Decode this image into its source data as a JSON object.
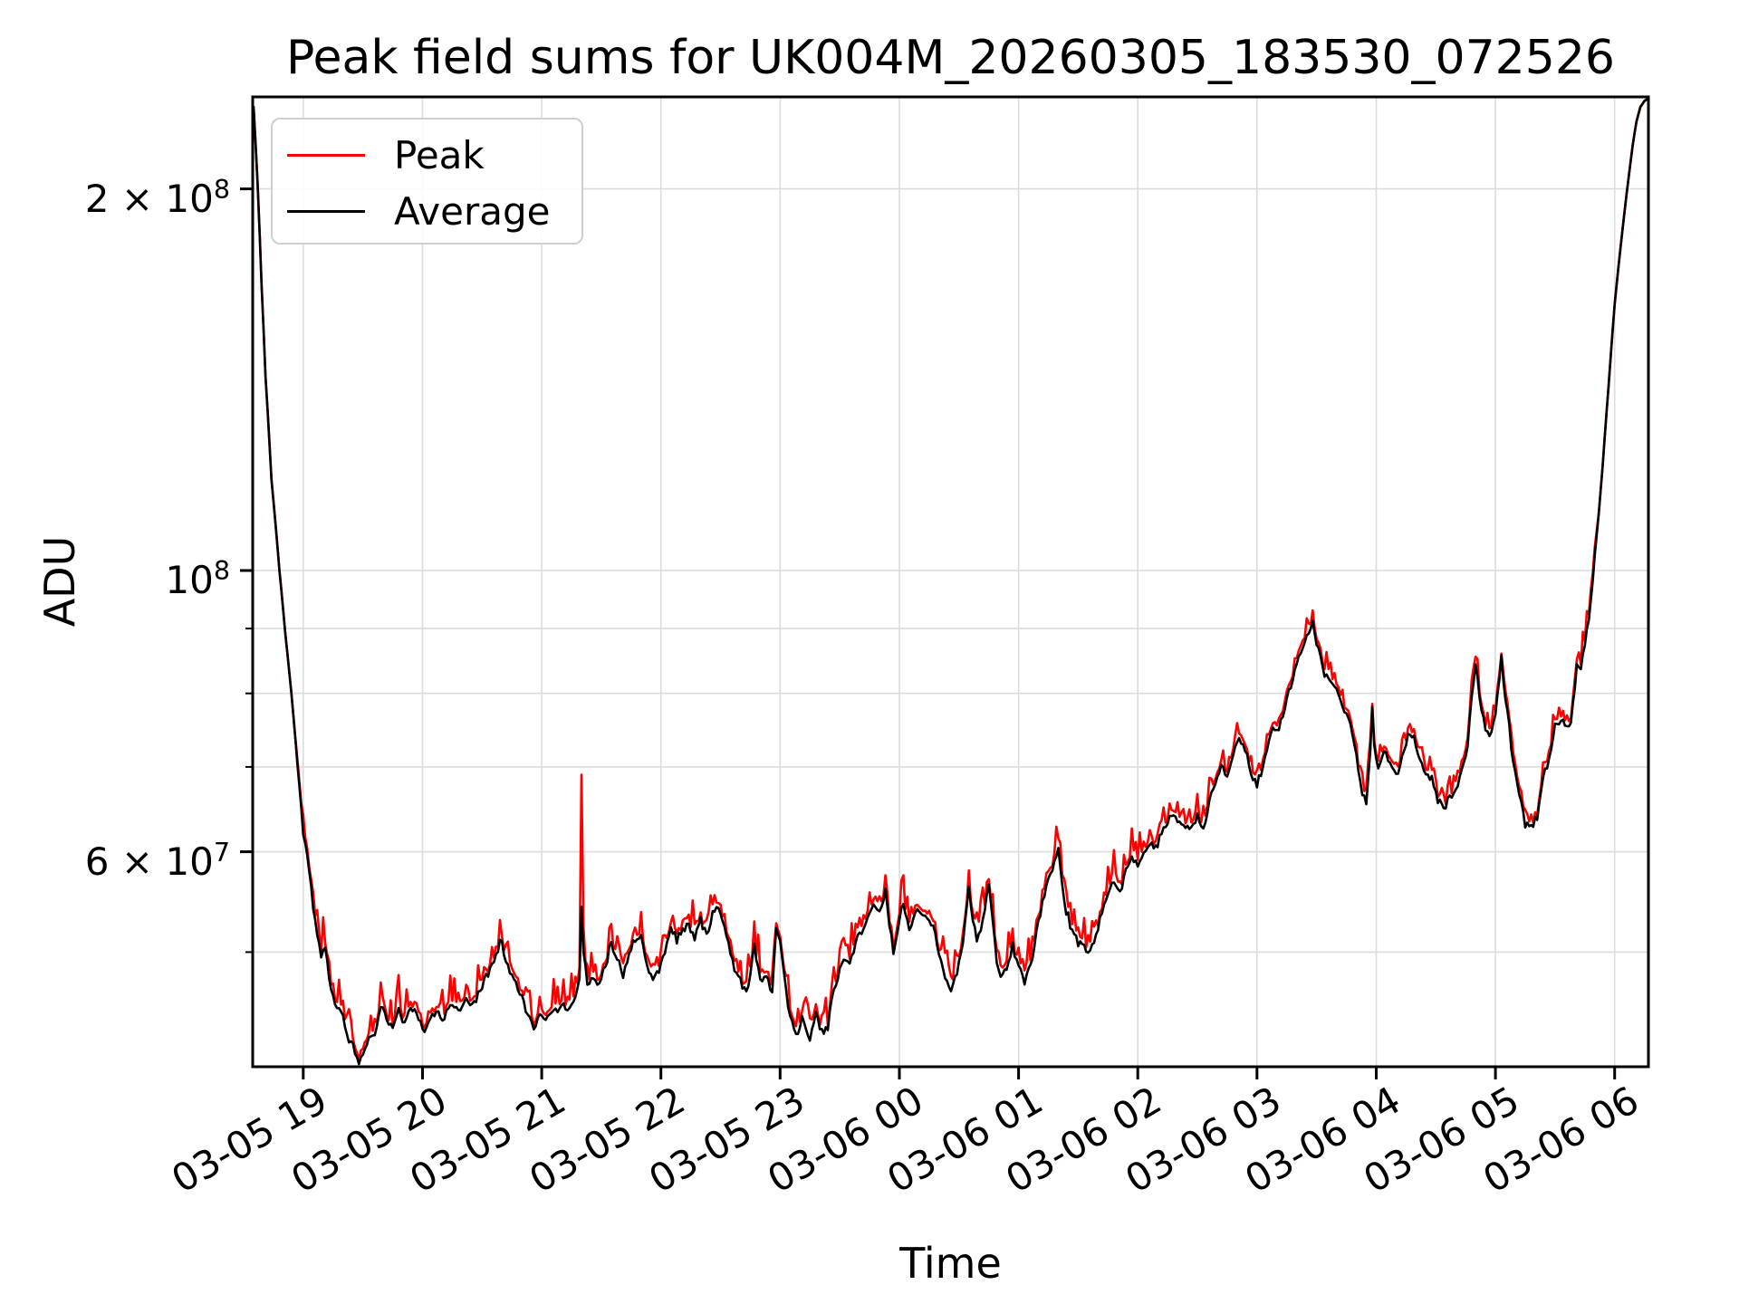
{
  "chart_data": {
    "type": "line",
    "title": "Peak field sums for UK004M_20260305_183530_072526",
    "xlabel": "Time",
    "ylabel": "ADU",
    "colors": {
      "peak": "#ff0000",
      "average": "#000000",
      "grid": "#dcdcdc",
      "spine": "#000000",
      "legend_border": "#cfcfcf"
    },
    "y_axis": {
      "scale": "log",
      "range": [
        40600000,
        236000000
      ],
      "grid": true,
      "labeled_ticks": [
        {
          "value": 200000000,
          "base": "2 × 10",
          "exp": "8"
        },
        {
          "value": 100000000,
          "base": "10",
          "exp": "8"
        },
        {
          "value": 60000000,
          "base": "6 × 10",
          "exp": "7"
        }
      ],
      "minor_ticks": [
        90000000,
        80000000,
        70000000,
        50000000
      ]
    },
    "x_axis": {
      "grid": true,
      "start_minute": 0,
      "end_minute": 702,
      "tick_minutes": [
        25,
        85,
        145,
        205,
        265,
        325,
        385,
        445,
        505,
        565,
        625,
        685
      ],
      "tick_labels": [
        "03-05 19",
        "03-05 20",
        "03-05 21",
        "03-05 22",
        "03-05 23",
        "03-06 00",
        "03-06 01",
        "03-06 02",
        "03-06 03",
        "03-06 04",
        "03-06 05",
        "03-06 06"
      ]
    },
    "legend": {
      "location": "upper left",
      "entries": [
        {
          "label": "Peak",
          "color": "#ff0000"
        },
        {
          "label": "Average",
          "color": "#000000"
        }
      ]
    },
    "noise": {
      "seed": 11,
      "avg_jitter": 0.01,
      "peak_base": 0.008,
      "peak_spike": 0.055
    },
    "series": [
      {
        "name": "Peak",
        "color": "#ff0000",
        "style": "noisy envelope above Average",
        "extra_spikes_minute_value_1e7": [
          [
            124,
            5.3
          ],
          [
            165,
            6.9
          ],
          [
            318,
            5.75
          ],
          [
            360,
            5.8
          ],
          [
            405,
            6.15
          ],
          [
            533,
            9.3
          ],
          [
            563,
            7.85
          ],
          [
            615,
            8.55
          ],
          [
            628,
            8.6
          ]
        ]
      },
      {
        "name": "Average",
        "color": "#000000",
        "anchors_minute_value_1e7": [
          [
            0,
            23.2
          ],
          [
            2,
            20.2
          ],
          [
            4,
            16.8
          ],
          [
            6,
            14.2
          ],
          [
            9,
            11.8
          ],
          [
            13,
            10.0
          ],
          [
            16,
            8.9
          ],
          [
            19,
            8.0
          ],
          [
            22,
            7.05
          ],
          [
            25,
            6.2
          ],
          [
            28,
            5.8
          ],
          [
            30,
            5.45
          ],
          [
            32,
            5.15
          ],
          [
            34,
            4.95
          ],
          [
            36,
            5.05
          ],
          [
            38,
            4.75
          ],
          [
            41,
            4.55
          ],
          [
            44,
            4.5
          ],
          [
            47,
            4.32
          ],
          [
            50,
            4.2
          ],
          [
            53,
            4.1
          ],
          [
            56,
            4.18
          ],
          [
            59,
            4.32
          ],
          [
            61,
            4.28
          ],
          [
            64,
            4.55
          ],
          [
            67,
            4.42
          ],
          [
            70,
            4.34
          ],
          [
            73,
            4.5
          ],
          [
            76,
            4.4
          ],
          [
            79,
            4.54
          ],
          [
            82,
            4.46
          ],
          [
            86,
            4.34
          ],
          [
            89,
            4.42
          ],
          [
            92,
            4.48
          ],
          [
            95,
            4.4
          ],
          [
            98,
            4.52
          ],
          [
            101,
            4.56
          ],
          [
            104,
            4.47
          ],
          [
            107,
            4.6
          ],
          [
            110,
            4.54
          ],
          [
            113,
            4.64
          ],
          [
            116,
            4.74
          ],
          [
            119,
            4.86
          ],
          [
            122,
            4.98
          ],
          [
            124,
            5.12
          ],
          [
            126,
            5.0
          ],
          [
            129,
            4.82
          ],
          [
            132,
            4.72
          ],
          [
            135,
            4.6
          ],
          [
            138,
            4.48
          ],
          [
            141,
            4.37
          ],
          [
            144,
            4.46
          ],
          [
            147,
            4.43
          ],
          [
            150,
            4.52
          ],
          [
            153,
            4.48
          ],
          [
            156,
            4.56
          ],
          [
            159,
            4.5
          ],
          [
            162,
            4.62
          ],
          [
            164,
            4.75
          ],
          [
            165,
            5.45
          ],
          [
            166,
            5.0
          ],
          [
            168,
            4.72
          ],
          [
            171,
            4.78
          ],
          [
            174,
            4.72
          ],
          [
            177,
            4.88
          ],
          [
            180,
            5.08
          ],
          [
            183,
            4.96
          ],
          [
            186,
            4.8
          ],
          [
            189,
            4.98
          ],
          [
            192,
            5.12
          ],
          [
            195,
            5.16
          ],
          [
            198,
            4.88
          ],
          [
            201,
            4.75
          ],
          [
            204,
            4.85
          ],
          [
            207,
            5.0
          ],
          [
            210,
            5.24
          ],
          [
            213,
            5.12
          ],
          [
            216,
            5.2
          ],
          [
            219,
            5.26
          ],
          [
            222,
            5.12
          ],
          [
            225,
            5.3
          ],
          [
            228,
            5.16
          ],
          [
            231,
            5.34
          ],
          [
            234,
            5.42
          ],
          [
            237,
            5.22
          ],
          [
            240,
            4.98
          ],
          [
            243,
            4.82
          ],
          [
            246,
            4.7
          ],
          [
            249,
            4.66
          ],
          [
            252,
            5.06
          ],
          [
            254,
            4.85
          ],
          [
            256,
            4.72
          ],
          [
            258,
            4.8
          ],
          [
            261,
            4.66
          ],
          [
            263,
            5.26
          ],
          [
            265,
            5.1
          ],
          [
            267,
            4.8
          ],
          [
            269,
            4.5
          ],
          [
            272,
            4.36
          ],
          [
            274,
            4.32
          ],
          [
            276,
            4.45
          ],
          [
            278,
            4.35
          ],
          [
            280,
            4.29
          ],
          [
            283,
            4.45
          ],
          [
            285,
            4.35
          ],
          [
            287,
            4.31
          ],
          [
            289,
            4.38
          ],
          [
            291,
            4.6
          ],
          [
            294,
            4.76
          ],
          [
            297,
            4.93
          ],
          [
            300,
            4.9
          ],
          [
            303,
            5.1
          ],
          [
            306,
            5.16
          ],
          [
            309,
            5.32
          ],
          [
            312,
            5.45
          ],
          [
            315,
            5.36
          ],
          [
            318,
            5.58
          ],
          [
            320,
            5.25
          ],
          [
            322,
            5.0
          ],
          [
            325,
            5.3
          ],
          [
            327,
            5.45
          ],
          [
            330,
            5.22
          ],
          [
            333,
            5.36
          ],
          [
            336,
            5.4
          ],
          [
            339,
            5.32
          ],
          [
            342,
            5.22
          ],
          [
            345,
            4.98
          ],
          [
            348,
            4.78
          ],
          [
            351,
            4.66
          ],
          [
            354,
            4.8
          ],
          [
            357,
            5.1
          ],
          [
            360,
            5.62
          ],
          [
            362,
            5.3
          ],
          [
            364,
            5.1
          ],
          [
            367,
            5.3
          ],
          [
            370,
            5.68
          ],
          [
            372,
            5.3
          ],
          [
            374,
            4.9
          ],
          [
            376,
            4.77
          ],
          [
            379,
            4.86
          ],
          [
            382,
            5.06
          ],
          [
            385,
            4.88
          ],
          [
            388,
            4.72
          ],
          [
            391,
            4.86
          ],
          [
            394,
            5.2
          ],
          [
            397,
            5.45
          ],
          [
            400,
            5.72
          ],
          [
            403,
            5.88
          ],
          [
            405,
            6.0
          ],
          [
            407,
            5.65
          ],
          [
            409,
            5.4
          ],
          [
            412,
            5.18
          ],
          [
            415,
            5.1
          ],
          [
            418,
            5.06
          ],
          [
            421,
            5.02
          ],
          [
            424,
            5.14
          ],
          [
            427,
            5.38
          ],
          [
            430,
            5.56
          ],
          [
            433,
            5.7
          ],
          [
            436,
            5.58
          ],
          [
            439,
            5.78
          ],
          [
            442,
            5.95
          ],
          [
            445,
            5.86
          ],
          [
            448,
            5.96
          ],
          [
            451,
            6.12
          ],
          [
            454,
            6.02
          ],
          [
            457,
            6.2
          ],
          [
            460,
            6.32
          ],
          [
            463,
            6.44
          ],
          [
            466,
            6.32
          ],
          [
            469,
            6.28
          ],
          [
            472,
            6.22
          ],
          [
            475,
            6.4
          ],
          [
            478,
            6.27
          ],
          [
            481,
            6.55
          ],
          [
            484,
            6.78
          ],
          [
            487,
            7.02
          ],
          [
            490,
            6.82
          ],
          [
            493,
            7.18
          ],
          [
            496,
            7.38
          ],
          [
            499,
            7.22
          ],
          [
            502,
            6.92
          ],
          [
            505,
            6.76
          ],
          [
            508,
            7.0
          ],
          [
            511,
            7.3
          ],
          [
            513,
            7.52
          ],
          [
            515,
            7.45
          ],
          [
            518,
            7.68
          ],
          [
            521,
            8.02
          ],
          [
            524,
            8.35
          ],
          [
            527,
            8.6
          ],
          [
            530,
            8.9
          ],
          [
            533,
            9.1
          ],
          [
            535,
            8.75
          ],
          [
            538,
            8.35
          ],
          [
            541,
            8.2
          ],
          [
            544,
            8.12
          ],
          [
            547,
            7.9
          ],
          [
            550,
            7.75
          ],
          [
            553,
            7.42
          ],
          [
            556,
            6.95
          ],
          [
            558,
            6.68
          ],
          [
            560,
            6.55
          ],
          [
            562,
            7.2
          ],
          [
            563,
            7.77
          ],
          [
            564,
            7.3
          ],
          [
            566,
            6.98
          ],
          [
            569,
            7.18
          ],
          [
            572,
            7.05
          ],
          [
            575,
            6.87
          ],
          [
            578,
            7.08
          ],
          [
            581,
            7.42
          ],
          [
            584,
            7.4
          ],
          [
            587,
            7.12
          ],
          [
            590,
            6.92
          ],
          [
            593,
            6.87
          ],
          [
            596,
            6.6
          ],
          [
            599,
            6.5
          ],
          [
            602,
            6.62
          ],
          [
            605,
            6.72
          ],
          [
            608,
            6.95
          ],
          [
            611,
            7.3
          ],
          [
            613,
            7.9
          ],
          [
            615,
            8.45
          ],
          [
            617,
            7.95
          ],
          [
            620,
            7.5
          ],
          [
            622,
            7.36
          ],
          [
            625,
            7.7
          ],
          [
            628,
            8.5
          ],
          [
            630,
            7.9
          ],
          [
            632,
            7.5
          ],
          [
            634,
            7.05
          ],
          [
            637,
            6.68
          ],
          [
            640,
            6.3
          ],
          [
            643,
            6.28
          ],
          [
            646,
            6.42
          ],
          [
            649,
            6.85
          ],
          [
            652,
            7.12
          ],
          [
            655,
            7.55
          ],
          [
            658,
            7.62
          ],
          [
            661,
            7.52
          ],
          [
            663,
            7.56
          ],
          [
            665,
            8.1
          ],
          [
            666,
            8.4
          ],
          [
            668,
            8.36
          ],
          [
            670,
            8.75
          ],
          [
            672,
            9.2
          ],
          [
            674,
            9.85
          ],
          [
            676,
            10.6
          ],
          [
            679,
            12.1
          ],
          [
            682,
            14.0
          ],
          [
            685,
            16.2
          ],
          [
            688,
            18.0
          ],
          [
            691,
            19.8
          ],
          [
            694,
            21.6
          ],
          [
            696,
            22.6
          ],
          [
            698,
            23.2
          ],
          [
            700,
            23.45
          ],
          [
            702,
            23.55
          ]
        ]
      }
    ]
  }
}
